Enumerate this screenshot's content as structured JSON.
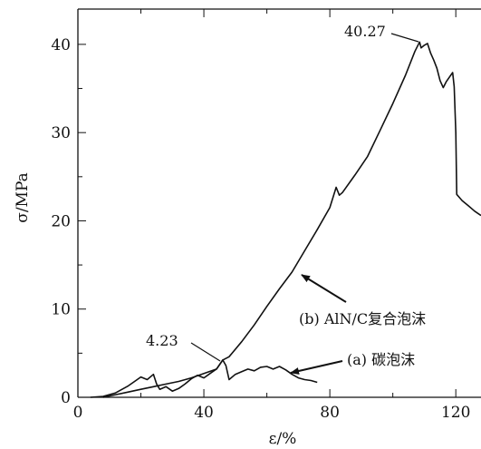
{
  "chart_data": {
    "type": "line",
    "xlabel": "ε/%",
    "ylabel": "σ/MPa",
    "xlim": [
      0,
      128
    ],
    "ylim": [
      0,
      44
    ],
    "x_ticks": [
      0,
      40,
      80,
      120
    ],
    "y_ticks": [
      0,
      10,
      20,
      30,
      40
    ],
    "grid": false,
    "legend": "none",
    "series": [
      {
        "name": "(b) AlN/C复合泡沫",
        "color": "#111111",
        "points": [
          [
            8,
            0
          ],
          [
            12,
            0.3
          ],
          [
            16,
            0.6
          ],
          [
            20,
            0.9
          ],
          [
            24,
            1.2
          ],
          [
            28,
            1.5
          ],
          [
            32,
            1.8
          ],
          [
            36,
            2.2
          ],
          [
            40,
            2.7
          ],
          [
            44,
            3.2
          ],
          [
            46,
            4.23
          ],
          [
            48,
            4.6
          ],
          [
            52,
            6.3
          ],
          [
            56,
            8.2
          ],
          [
            60,
            10.3
          ],
          [
            64,
            12.3
          ],
          [
            68,
            14.2
          ],
          [
            72,
            16.6
          ],
          [
            76,
            19.0
          ],
          [
            80,
            21.5
          ],
          [
            82,
            23.8
          ],
          [
            83,
            22.9
          ],
          [
            84,
            23.2
          ],
          [
            88,
            25.2
          ],
          [
            92,
            27.3
          ],
          [
            96,
            30.3
          ],
          [
            100,
            33.3
          ],
          [
            104,
            36.5
          ],
          [
            107,
            39.2
          ],
          [
            108.5,
            40.27
          ],
          [
            109,
            39.6
          ],
          [
            110,
            39.9
          ],
          [
            111,
            40.1
          ],
          [
            112,
            39.0
          ],
          [
            113,
            38.2
          ],
          [
            114,
            37.3
          ],
          [
            115,
            35.9
          ],
          [
            116,
            35.1
          ],
          [
            117,
            35.8
          ],
          [
            118,
            36.3
          ],
          [
            119,
            36.8
          ],
          [
            119.5,
            35.2
          ],
          [
            120,
            30.0
          ],
          [
            120.3,
            23.0
          ],
          [
            122,
            22.3
          ],
          [
            124,
            21.7
          ],
          [
            126,
            21.1
          ],
          [
            128,
            20.6
          ]
        ]
      },
      {
        "name": "(a) 碳泡沫",
        "color": "#111111",
        "points": [
          [
            4,
            0
          ],
          [
            8,
            0.1
          ],
          [
            12,
            0.5
          ],
          [
            16,
            1.3
          ],
          [
            18,
            1.8
          ],
          [
            20,
            2.3
          ],
          [
            22,
            2.0
          ],
          [
            24,
            2.6
          ],
          [
            25,
            1.5
          ],
          [
            26,
            0.9
          ],
          [
            28,
            1.2
          ],
          [
            30,
            0.7
          ],
          [
            32,
            1.0
          ],
          [
            34,
            1.5
          ],
          [
            36,
            2.1
          ],
          [
            38,
            2.5
          ],
          [
            40,
            2.2
          ],
          [
            42,
            2.7
          ],
          [
            44,
            3.2
          ],
          [
            46,
            4.23
          ],
          [
            47,
            3.6
          ],
          [
            48,
            2.0
          ],
          [
            50,
            2.6
          ],
          [
            52,
            2.9
          ],
          [
            54,
            3.2
          ],
          [
            56,
            3.0
          ],
          [
            58,
            3.4
          ],
          [
            60,
            3.5
          ],
          [
            62,
            3.2
          ],
          [
            64,
            3.5
          ],
          [
            66,
            3.1
          ],
          [
            68,
            2.6
          ],
          [
            70,
            2.2
          ],
          [
            72,
            2.0
          ],
          [
            74,
            1.9
          ],
          [
            76,
            1.7
          ]
        ]
      }
    ],
    "annotations": [
      {
        "text": "40.27",
        "value": 40.27
      },
      {
        "text": "4.23",
        "value": 4.23
      },
      {
        "text": "(b) AlN/C复合泡沫"
      },
      {
        "text": "(a) 碳泡沫"
      }
    ]
  }
}
